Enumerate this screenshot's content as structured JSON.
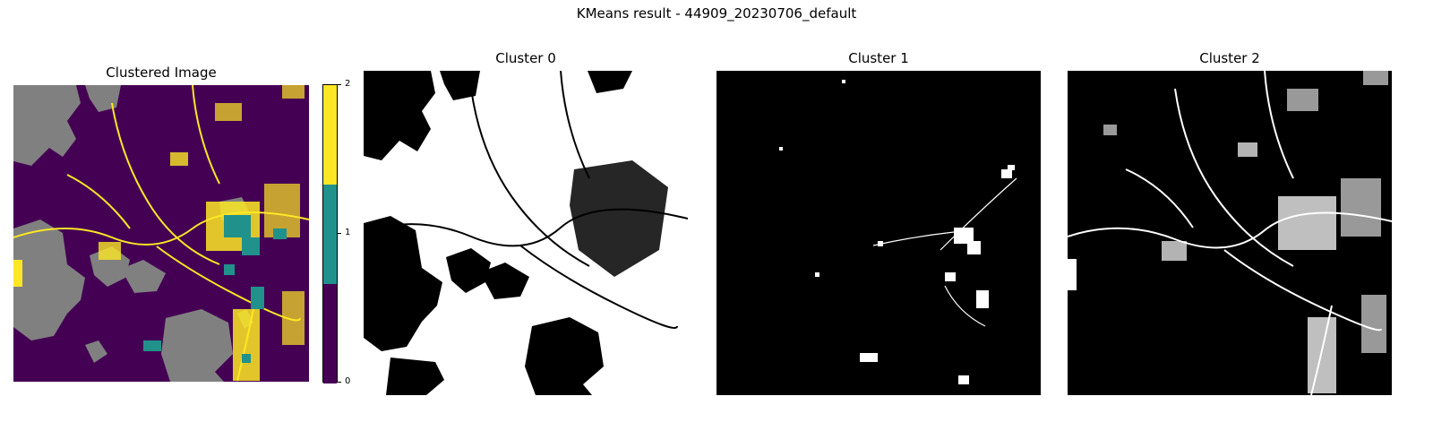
{
  "figure": {
    "suptitle": "KMeans result - 44909_20230706_default"
  },
  "panels": {
    "clustered": {
      "title": "Clustered Image"
    },
    "cluster0": {
      "title": "Cluster 0"
    },
    "cluster1": {
      "title": "Cluster 1"
    },
    "cluster2": {
      "title": "Cluster 2"
    }
  },
  "colorbar": {
    "ticks": [
      "0",
      "1",
      "2"
    ],
    "colors": [
      "#440154",
      "#21918c",
      "#fde725"
    ]
  },
  "colors": {
    "nodata": "#808080",
    "mask_on": "#ffffff",
    "mask_off": "#000000"
  }
}
